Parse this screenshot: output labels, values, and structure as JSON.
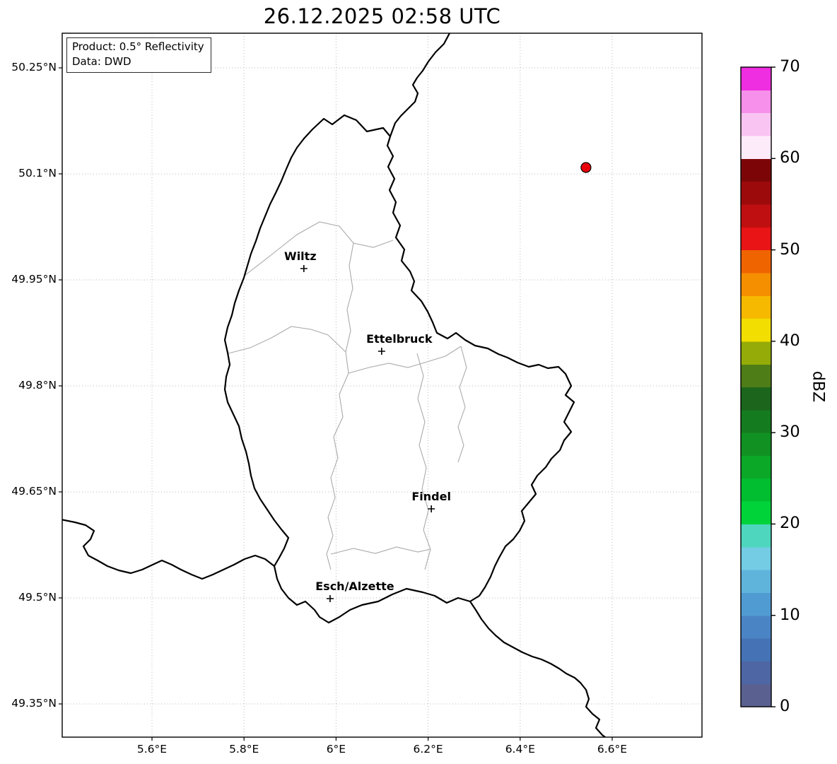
{
  "title": "26.12.2025 02:58 UTC",
  "annotation": {
    "line1": "Product: 0.5° Reflectivity",
    "line2": "Data: DWD"
  },
  "axes": {
    "x_ticks": [
      {
        "label": "5.6°E",
        "value": 5.6
      },
      {
        "label": "5.8°E",
        "value": 5.8
      },
      {
        "label": "6°E",
        "value": 6.0
      },
      {
        "label": "6.2°E",
        "value": 6.2
      },
      {
        "label": "6.4°E",
        "value": 6.4
      },
      {
        "label": "6.6°E",
        "value": 6.6
      }
    ],
    "y_ticks": [
      {
        "label": "50.25°N",
        "value": 50.25
      },
      {
        "label": "50.1°N",
        "value": 50.1
      },
      {
        "label": "49.95°N",
        "value": 49.95
      },
      {
        "label": "49.8°N",
        "value": 49.8
      },
      {
        "label": "49.65°N",
        "value": 49.65
      },
      {
        "label": "49.5°N",
        "value": 49.5
      },
      {
        "label": "49.35°N",
        "value": 49.35
      }
    ]
  },
  "map": {
    "cities": [
      {
        "name": "Wiltz",
        "lon": 5.93,
        "lat": 49.966,
        "label_dx": -5
      },
      {
        "name": "Ettelbruck",
        "lon": 6.099,
        "lat": 49.849,
        "label_dx": 25
      },
      {
        "name": "Findel",
        "lon": 6.207,
        "lat": 49.626,
        "label_dx": 0
      },
      {
        "name": "Esch/Alzette",
        "lon": 5.987,
        "lat": 49.499,
        "label_dx": 35
      }
    ],
    "radar_marker": {
      "lon": 6.543,
      "lat": 50.109,
      "color": "#e8000b",
      "edge_color": "#000000"
    },
    "border_color": "#000000",
    "district_border_color": "#aaaaaa",
    "grid_color": "#b9b9b9"
  },
  "colorbar": {
    "label": "dBZ",
    "min": 0,
    "max": 70,
    "step": 2.5,
    "tick_values": [
      0,
      10,
      20,
      30,
      40,
      50,
      60,
      70
    ],
    "tick_labels": [
      "0",
      "10",
      "20",
      "30",
      "40",
      "50",
      "60",
      "70"
    ],
    "colors_bottom_to_top": [
      "#5a6190",
      "#4e66a3",
      "#4572b4",
      "#4a84c4",
      "#509bd1",
      "#5fb4dc",
      "#74cce4",
      "#4ed6be",
      "#00d33a",
      "#00be2f",
      "#0ba828",
      "#119122",
      "#157b1f",
      "#1b661c",
      "#4e7d17",
      "#95ab07",
      "#f2de00",
      "#f7b900",
      "#f68f00",
      "#f06400",
      "#e81416",
      "#c00f11",
      "#9d0a0c",
      "#7c0607",
      "#fdebfa",
      "#fac4f2",
      "#f690ea",
      "#ee2ee0"
    ]
  }
}
